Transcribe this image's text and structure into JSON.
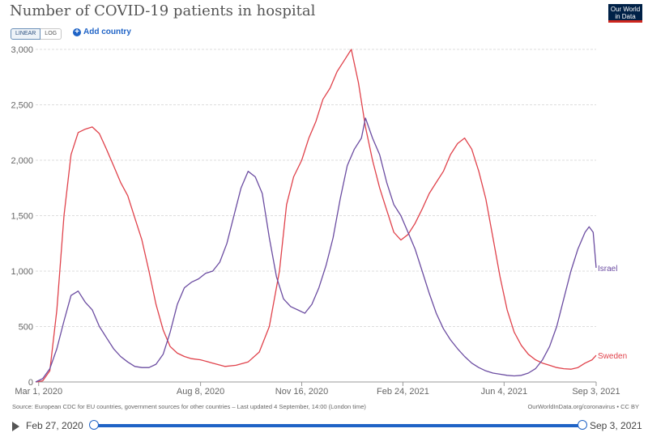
{
  "header": {
    "title": "Number of COVID-19 patients in hospital",
    "logo_line1": "Our World",
    "logo_line2": "in Data",
    "scale_linear": "LINEAR",
    "scale_log": "LOG",
    "add_country": "Add country"
  },
  "footer": {
    "source": "Source: European CDC for EU countries, government sources for other countries – Last updated 4 September, 14:00 (London time)",
    "credit": "OurWorldInData.org/coronavirus • CC BY"
  },
  "timeline": {
    "start_label": "Feb 27, 2020",
    "end_label": "Sep 3, 2021"
  },
  "colors": {
    "israel": "#6b4ca1",
    "sweden": "#e0424b",
    "grid": "#dddddd",
    "accent": "#1f63c6"
  },
  "chart_data": {
    "type": "line",
    "title": "Number of COVID-19 patients in hospital",
    "x_axis": {
      "type": "date",
      "range": [
        "2020-02-27",
        "2021-09-03"
      ],
      "ticks": [
        {
          "date": "2020-03-01",
          "label": "Mar 1, 2020"
        },
        {
          "date": "2020-08-08",
          "label": "Aug 8, 2020"
        },
        {
          "date": "2020-11-16",
          "label": "Nov 16, 2020"
        },
        {
          "date": "2021-02-24",
          "label": "Feb 24, 2021"
        },
        {
          "date": "2021-06-04",
          "label": "Jun 4, 2021"
        },
        {
          "date": "2021-09-03",
          "label": "Sep 3, 2021"
        }
      ]
    },
    "y_axis": {
      "range": [
        0,
        3000
      ],
      "ticks": [
        0,
        500,
        1000,
        1500,
        2000,
        2500,
        3000
      ],
      "tick_labels": [
        "0",
        "500",
        "1,000",
        "1,500",
        "2,000",
        "2,500",
        "3,000"
      ],
      "grid": true
    },
    "series": [
      {
        "name": "Sweden",
        "points": [
          [
            "2020-02-27",
            0
          ],
          [
            "2020-03-05",
            10
          ],
          [
            "2020-03-12",
            100
          ],
          [
            "2020-03-19",
            650
          ],
          [
            "2020-03-26",
            1500
          ],
          [
            "2020-04-02",
            2050
          ],
          [
            "2020-04-09",
            2250
          ],
          [
            "2020-04-16",
            2280
          ],
          [
            "2020-04-23",
            2300
          ],
          [
            "2020-04-30",
            2240
          ],
          [
            "2020-05-07",
            2100
          ],
          [
            "2020-05-14",
            1950
          ],
          [
            "2020-05-21",
            1800
          ],
          [
            "2020-05-28",
            1680
          ],
          [
            "2020-06-04",
            1480
          ],
          [
            "2020-06-11",
            1280
          ],
          [
            "2020-06-18",
            1000
          ],
          [
            "2020-06-25",
            700
          ],
          [
            "2020-07-02",
            470
          ],
          [
            "2020-07-09",
            320
          ],
          [
            "2020-07-16",
            260
          ],
          [
            "2020-07-23",
            230
          ],
          [
            "2020-07-30",
            210
          ],
          [
            "2020-08-08",
            200
          ],
          [
            "2020-08-20",
            170
          ],
          [
            "2020-09-01",
            140
          ],
          [
            "2020-09-12",
            150
          ],
          [
            "2020-09-24",
            180
          ],
          [
            "2020-10-05",
            270
          ],
          [
            "2020-10-15",
            500
          ],
          [
            "2020-10-25",
            1000
          ],
          [
            "2020-11-01",
            1600
          ],
          [
            "2020-11-08",
            1850
          ],
          [
            "2020-11-16",
            2000
          ],
          [
            "2020-11-23",
            2200
          ],
          [
            "2020-11-30",
            2350
          ],
          [
            "2020-12-07",
            2550
          ],
          [
            "2020-12-14",
            2650
          ],
          [
            "2020-12-21",
            2800
          ],
          [
            "2020-12-28",
            2900
          ],
          [
            "2021-01-04",
            3000
          ],
          [
            "2021-01-11",
            2700
          ],
          [
            "2021-01-18",
            2300
          ],
          [
            "2021-01-25",
            2000
          ],
          [
            "2021-02-01",
            1750
          ],
          [
            "2021-02-08",
            1550
          ],
          [
            "2021-02-15",
            1350
          ],
          [
            "2021-02-22",
            1280
          ],
          [
            "2021-03-01",
            1330
          ],
          [
            "2021-03-08",
            1430
          ],
          [
            "2021-03-15",
            1560
          ],
          [
            "2021-03-22",
            1700
          ],
          [
            "2021-03-29",
            1800
          ],
          [
            "2021-04-05",
            1900
          ],
          [
            "2021-04-12",
            2050
          ],
          [
            "2021-04-19",
            2150
          ],
          [
            "2021-04-26",
            2200
          ],
          [
            "2021-05-03",
            2100
          ],
          [
            "2021-05-10",
            1900
          ],
          [
            "2021-05-17",
            1650
          ],
          [
            "2021-05-24",
            1300
          ],
          [
            "2021-05-31",
            950
          ],
          [
            "2021-06-07",
            650
          ],
          [
            "2021-06-14",
            450
          ],
          [
            "2021-06-21",
            330
          ],
          [
            "2021-06-28",
            250
          ],
          [
            "2021-07-05",
            200
          ],
          [
            "2021-07-12",
            170
          ],
          [
            "2021-07-19",
            150
          ],
          [
            "2021-07-26",
            130
          ],
          [
            "2021-08-02",
            120
          ],
          [
            "2021-08-09",
            115
          ],
          [
            "2021-08-16",
            130
          ],
          [
            "2021-08-23",
            170
          ],
          [
            "2021-08-30",
            200
          ],
          [
            "2021-09-03",
            240
          ]
        ]
      },
      {
        "name": "Israel",
        "points": [
          [
            "2020-02-27",
            0
          ],
          [
            "2020-03-05",
            30
          ],
          [
            "2020-03-12",
            120
          ],
          [
            "2020-03-19",
            300
          ],
          [
            "2020-03-26",
            550
          ],
          [
            "2020-04-02",
            780
          ],
          [
            "2020-04-09",
            820
          ],
          [
            "2020-04-16",
            720
          ],
          [
            "2020-04-23",
            650
          ],
          [
            "2020-04-30",
            500
          ],
          [
            "2020-05-07",
            400
          ],
          [
            "2020-05-14",
            300
          ],
          [
            "2020-05-21",
            230
          ],
          [
            "2020-05-28",
            180
          ],
          [
            "2020-06-04",
            140
          ],
          [
            "2020-06-11",
            130
          ],
          [
            "2020-06-18",
            130
          ],
          [
            "2020-06-25",
            160
          ],
          [
            "2020-07-02",
            250
          ],
          [
            "2020-07-09",
            450
          ],
          [
            "2020-07-16",
            700
          ],
          [
            "2020-07-23",
            850
          ],
          [
            "2020-07-30",
            900
          ],
          [
            "2020-08-06",
            930
          ],
          [
            "2020-08-13",
            980
          ],
          [
            "2020-08-20",
            1000
          ],
          [
            "2020-08-27",
            1080
          ],
          [
            "2020-09-03",
            1250
          ],
          [
            "2020-09-10",
            1500
          ],
          [
            "2020-09-17",
            1750
          ],
          [
            "2020-09-24",
            1900
          ],
          [
            "2020-10-01",
            1850
          ],
          [
            "2020-10-08",
            1700
          ],
          [
            "2020-10-15",
            1300
          ],
          [
            "2020-10-22",
            950
          ],
          [
            "2020-10-29",
            750
          ],
          [
            "2020-11-05",
            680
          ],
          [
            "2020-11-12",
            650
          ],
          [
            "2020-11-19",
            620
          ],
          [
            "2020-11-26",
            700
          ],
          [
            "2020-12-03",
            850
          ],
          [
            "2020-12-10",
            1050
          ],
          [
            "2020-12-17",
            1300
          ],
          [
            "2020-12-24",
            1650
          ],
          [
            "2020-12-31",
            1950
          ],
          [
            "2021-01-07",
            2100
          ],
          [
            "2021-01-14",
            2200
          ],
          [
            "2021-01-18",
            2380
          ],
          [
            "2021-01-25",
            2200
          ],
          [
            "2021-02-01",
            2050
          ],
          [
            "2021-02-08",
            1800
          ],
          [
            "2021-02-15",
            1600
          ],
          [
            "2021-02-22",
            1500
          ],
          [
            "2021-03-01",
            1350
          ],
          [
            "2021-03-08",
            1200
          ],
          [
            "2021-03-15",
            1000
          ],
          [
            "2021-03-22",
            800
          ],
          [
            "2021-03-29",
            620
          ],
          [
            "2021-04-05",
            480
          ],
          [
            "2021-04-12",
            380
          ],
          [
            "2021-04-19",
            300
          ],
          [
            "2021-04-26",
            230
          ],
          [
            "2021-05-03",
            170
          ],
          [
            "2021-05-10",
            130
          ],
          [
            "2021-05-17",
            100
          ],
          [
            "2021-05-24",
            80
          ],
          [
            "2021-05-31",
            70
          ],
          [
            "2021-06-07",
            60
          ],
          [
            "2021-06-14",
            55
          ],
          [
            "2021-06-21",
            60
          ],
          [
            "2021-06-28",
            80
          ],
          [
            "2021-07-05",
            120
          ],
          [
            "2021-07-12",
            200
          ],
          [
            "2021-07-19",
            320
          ],
          [
            "2021-07-26",
            500
          ],
          [
            "2021-08-02",
            750
          ],
          [
            "2021-08-09",
            1000
          ],
          [
            "2021-08-16",
            1200
          ],
          [
            "2021-08-23",
            1350
          ],
          [
            "2021-08-27",
            1400
          ],
          [
            "2021-08-31",
            1350
          ],
          [
            "2021-09-03",
            1030
          ]
        ]
      }
    ],
    "legend": "inline labels at line ends (right)"
  }
}
